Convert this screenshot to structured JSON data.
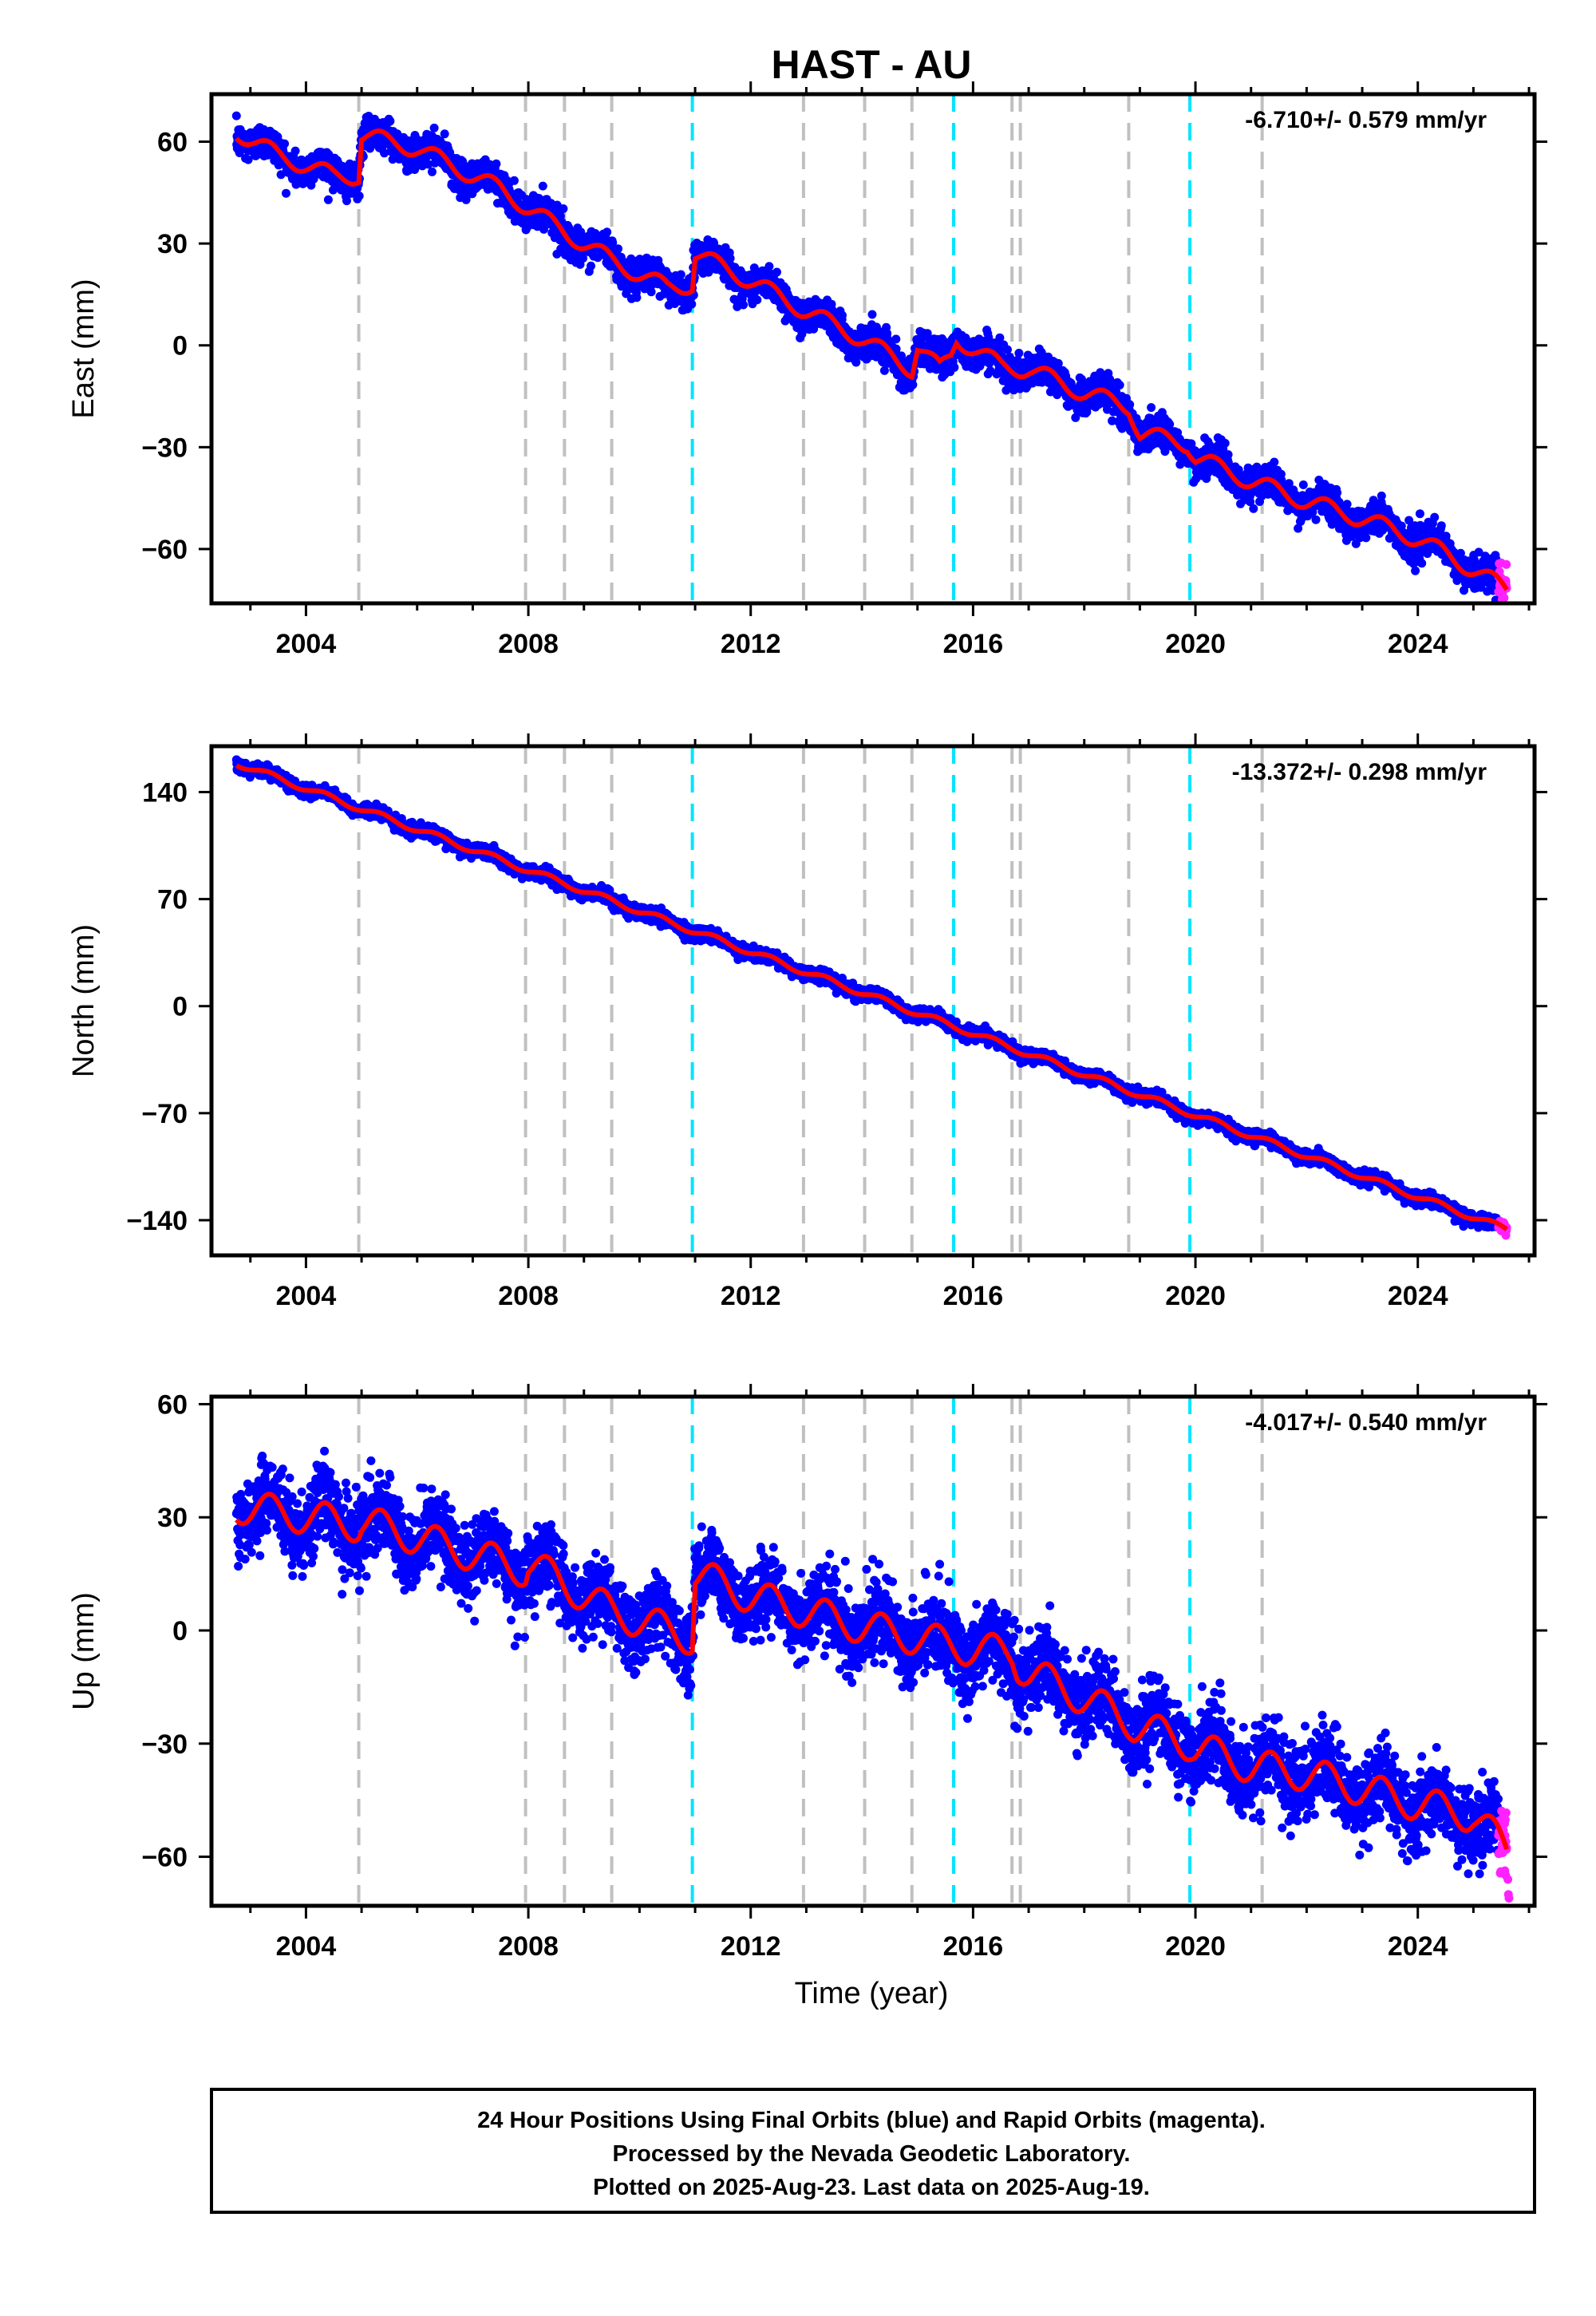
{
  "title": "HAST - AU",
  "xlabel": "Time (year)",
  "caption": [
    "24 Hour Positions Using Final Orbits (blue) and Rapid Orbits (magenta).",
    "Processed by the Nevada Geodetic Laboratory.",
    "Plotted on 2025-Aug-23. Last data on 2025-Aug-19."
  ],
  "colors": {
    "final": "#0000ff",
    "rapid": "#ff22ff",
    "model": "#ff0000",
    "equipment_change": "#c0c0c0",
    "earthquake": "#00e5ff"
  },
  "chart_data": [
    {
      "type": "scatter",
      "ylabel": "East (mm)",
      "rate": "-6.710+/- 0.579 mm/yr",
      "xlim": [
        2002.3,
        2026.1
      ],
      "ylim": [
        -76,
        74
      ],
      "xticks": [
        2004,
        2008,
        2012,
        2016,
        2020,
        2024
      ],
      "yticks": [
        -60,
        -30,
        0,
        30,
        60
      ],
      "x_start": 2002.75,
      "x_end": 2025.6,
      "rapid_start": 2025.45,
      "noise_sd": 2.4,
      "line_anchors": [
        [
          2002.75,
          63
        ],
        [
          2003.5,
          56
        ],
        [
          2004.5,
          50
        ],
        [
          2004.95,
          50
        ],
        [
          2005.0,
          62
        ],
        [
          2006,
          58
        ],
        [
          2007.5,
          46
        ],
        [
          2008.5,
          35
        ],
        [
          2009.5,
          25
        ],
        [
          2010.5,
          17
        ],
        [
          2010.95,
          18
        ],
        [
          2011.0,
          27
        ],
        [
          2012,
          19
        ],
        [
          2013,
          10
        ],
        [
          2014,
          2
        ],
        [
          2014.9,
          -7
        ],
        [
          2015.0,
          0
        ],
        [
          2015.4,
          -7
        ],
        [
          2015.6,
          -3
        ],
        [
          2015.7,
          2
        ],
        [
          2016.5,
          -6
        ],
        [
          2016.95,
          -7
        ],
        [
          2017,
          -7
        ],
        [
          2018,
          -14
        ],
        [
          2018.8,
          -18
        ],
        [
          2019.0,
          -26
        ],
        [
          2019.85,
          -29
        ],
        [
          2020,
          -33
        ],
        [
          2021,
          -40
        ],
        [
          2022,
          -46
        ],
        [
          2023,
          -51
        ],
        [
          2024,
          -57
        ],
        [
          2025,
          -66
        ],
        [
          2025.6,
          -72
        ]
      ],
      "line_wiggle_amp": 2.5,
      "equipment_changes": [
        2004.95,
        2007.95,
        2008.65,
        2009.5,
        2012.95,
        2014.05,
        2014.9,
        2016.7,
        2016.85,
        2018.8,
        2021.2
      ],
      "earthquakes": [
        2010.95,
        2015.65,
        2019.9
      ]
    },
    {
      "type": "scatter",
      "ylabel": "North (mm)",
      "rate": "-13.372+/- 0.298 mm/yr",
      "xlim": [
        2002.3,
        2026.1
      ],
      "ylim": [
        -163,
        170
      ],
      "xticks": [
        2004,
        2008,
        2012,
        2016,
        2020,
        2024
      ],
      "yticks": [
        -140,
        -70,
        0,
        70,
        140
      ],
      "x_start": 2002.75,
      "x_end": 2025.6,
      "rapid_start": 2025.45,
      "noise_sd": 2.0,
      "line_anchors": [
        [
          2002.75,
          159
        ],
        [
          2025.6,
          -146
        ]
      ],
      "line_wiggle_amp": 2.0,
      "equipment_changes": [
        2004.95,
        2007.95,
        2008.65,
        2009.5,
        2012.95,
        2014.05,
        2014.9,
        2016.7,
        2016.85,
        2018.8,
        2021.2
      ],
      "earthquakes": [
        2010.95,
        2015.65,
        2019.9
      ]
    },
    {
      "type": "scatter",
      "ylabel": "Up (mm)",
      "rate": "-4.017+/- 0.540 mm/yr",
      "xlim": [
        2002.3,
        2026.1
      ],
      "ylim": [
        -73,
        62
      ],
      "xticks": [
        2004,
        2008,
        2012,
        2016,
        2020,
        2024
      ],
      "yticks": [
        -60,
        -30,
        0,
        30,
        60
      ],
      "x_start": 2002.75,
      "x_end": 2025.6,
      "rapid_start": 2025.45,
      "noise_sd": 5.0,
      "line_anchors": [
        [
          2002.75,
          33
        ],
        [
          2004.95,
          28
        ],
        [
          2005.0,
          29
        ],
        [
          2007.95,
          16
        ],
        [
          2008.0,
          18
        ],
        [
          2009.5,
          5
        ],
        [
          2010.95,
          -2
        ],
        [
          2011.0,
          15
        ],
        [
          2012,
          9
        ],
        [
          2013,
          5
        ],
        [
          2014,
          1
        ],
        [
          2015,
          -2
        ],
        [
          2016,
          -5
        ],
        [
          2016.7,
          -6
        ],
        [
          2016.8,
          -9
        ],
        [
          2017,
          -11
        ],
        [
          2018,
          -18
        ],
        [
          2018.8,
          -24
        ],
        [
          2018.9,
          -25
        ],
        [
          2019.9,
          -30
        ],
        [
          2020,
          -31
        ],
        [
          2021,
          -36
        ],
        [
          2022,
          -38
        ],
        [
          2023,
          -42
        ],
        [
          2024,
          -46
        ],
        [
          2025,
          -49
        ],
        [
          2025.6,
          -58
        ]
      ],
      "line_wiggle_amp": 4.5,
      "rapid_outliers": [
        [
          2025.62,
          -66
        ],
        [
          2025.63,
          -70
        ],
        [
          2025.64,
          -71
        ]
      ],
      "equipment_changes": [
        2004.95,
        2007.95,
        2008.65,
        2009.5,
        2012.95,
        2014.05,
        2014.9,
        2016.7,
        2016.85,
        2018.8,
        2021.2
      ],
      "earthquakes": [
        2010.95,
        2015.65,
        2019.9
      ]
    }
  ]
}
